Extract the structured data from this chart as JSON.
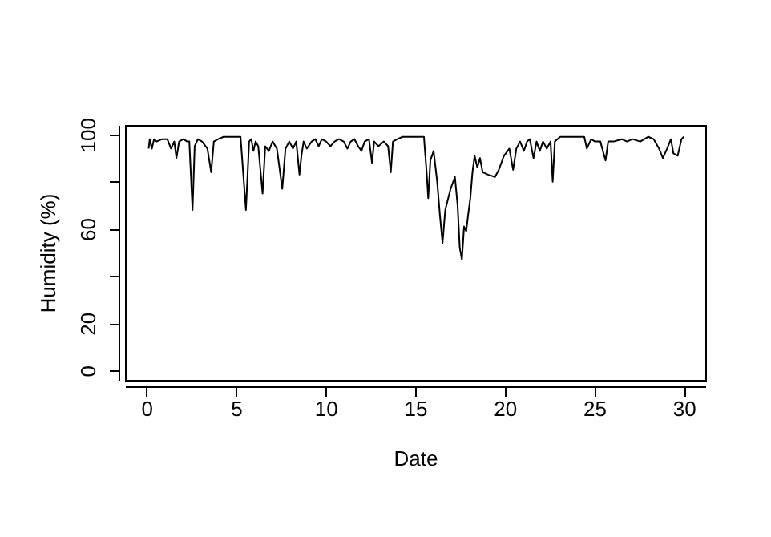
{
  "chart_data": {
    "type": "line",
    "xlabel": "Date",
    "ylabel": "Humidity (%)",
    "x": [
      0.12,
      0.18,
      0.3,
      0.42,
      0.57,
      0.87,
      1.16,
      1.37,
      1.55,
      1.67,
      1.82,
      2.06,
      2.27,
      2.39,
      2.57,
      2.69,
      2.87,
      3.1,
      3.4,
      3.61,
      3.76,
      4.0,
      4.3,
      5.04,
      5.25,
      5.55,
      5.73,
      5.85,
      5.97,
      6.09,
      6.24,
      6.48,
      6.63,
      6.83,
      7.04,
      7.28,
      7.58,
      7.76,
      7.97,
      8.18,
      8.36,
      8.54,
      8.65,
      8.77,
      8.95,
      9.22,
      9.43,
      9.61,
      9.79,
      10.03,
      10.27,
      10.5,
      10.74,
      11.01,
      11.22,
      11.4,
      11.61,
      11.82,
      12.0,
      12.18,
      12.42,
      12.59,
      12.71,
      12.95,
      13.25,
      13.49,
      13.64,
      13.76,
      14.0,
      14.3,
      15.49,
      15.64,
      15.73,
      15.85,
      16.03,
      16.23,
      16.38,
      16.53,
      16.68,
      16.98,
      17.22,
      17.37,
      17.49,
      17.61,
      17.73,
      17.85,
      17.96,
      18.08,
      18.2,
      18.32,
      18.47,
      18.62,
      18.77,
      19.07,
      19.46,
      19.67,
      19.96,
      20.26,
      20.47,
      20.65,
      20.86,
      21.07,
      21.25,
      21.4,
      21.61,
      21.78,
      21.96,
      22.14,
      22.35,
      22.56,
      22.68,
      22.8,
      23.1,
      24.44,
      24.59,
      24.83,
      25.04,
      25.34,
      25.63,
      25.78,
      26.08,
      26.53,
      26.83,
      27.13,
      27.57,
      28.02,
      28.32,
      28.62,
      28.83,
      29.07,
      29.28,
      29.42,
      29.66,
      29.87,
      30.0
    ],
    "series": [
      {
        "color": "#000000",
        "values": [
          94,
          98,
          94,
          98,
          97,
          98,
          98,
          94,
          97,
          90,
          97,
          98,
          97,
          97,
          68,
          95,
          98,
          97,
          94,
          84,
          97,
          98,
          99,
          99,
          99,
          68,
          97,
          98,
          93,
          97,
          95,
          75,
          95,
          93,
          97,
          94,
          77,
          94,
          97,
          94,
          97,
          83,
          91,
          97,
          94,
          97,
          98,
          95,
          98,
          97,
          95,
          97,
          98,
          97,
          94,
          97,
          98,
          95,
          93,
          97,
          98,
          88,
          97,
          95,
          97,
          95,
          84,
          97,
          98,
          99,
          99,
          84,
          73,
          89,
          93,
          80,
          66,
          54,
          68,
          77,
          82,
          70,
          52,
          47,
          61,
          59,
          66,
          73,
          84,
          91,
          86,
          90,
          84,
          83,
          82,
          85,
          91,
          94,
          85,
          94,
          97,
          93,
          97,
          98,
          90,
          97,
          93,
          97,
          94,
          97,
          80,
          97,
          99,
          99,
          94,
          98,
          97,
          97,
          89,
          97,
          97,
          98,
          97,
          98,
          97,
          99,
          98,
          94,
          90,
          94,
          98,
          92,
          91,
          98,
          99
        ]
      }
    ],
    "xlim": [
      -1.2,
      31.2
    ],
    "ylim": [
      -4,
      104
    ],
    "xticks": [
      0,
      5,
      10,
      15,
      20,
      25,
      30
    ],
    "yticks": [
      0,
      20,
      {
        "value": 40,
        "label": null
      },
      60,
      {
        "value": 80,
        "label": null
      },
      100
    ],
    "grid": false,
    "marker": "none",
    "line_style": "solid"
  }
}
